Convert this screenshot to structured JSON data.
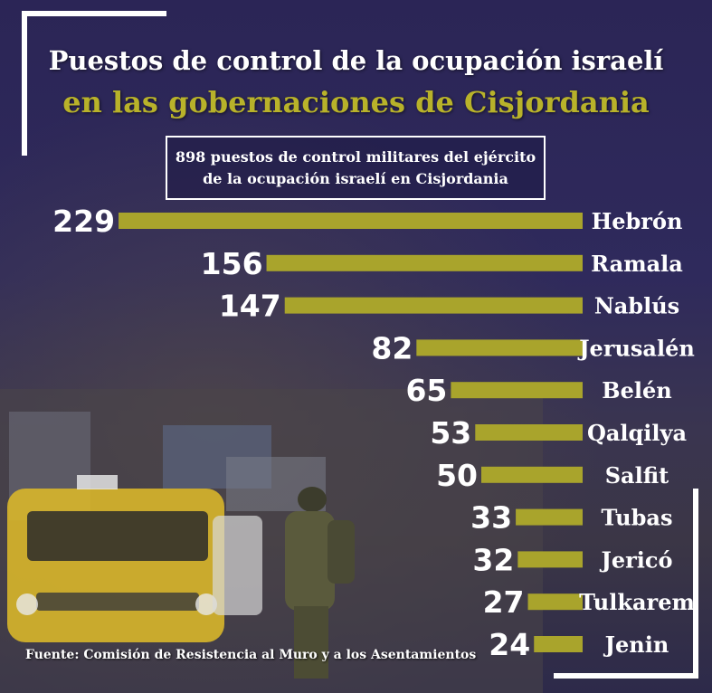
{
  "title_line1": "Puestos de control de la ocupación israelí",
  "title_line2": "en las gobernaciones de Cisjordania",
  "subtitle_line1": "898 puestos de control militares del ejército",
  "subtitle_line2": "de la ocupación israelí en Cisjordania",
  "source": "Fuente: Comisión de Resistencia al Muro y a los Asentamientos",
  "colors": {
    "title_accent": "#b8b22a",
    "bar": "#a9a42c",
    "text": "#ffffff"
  },
  "chart_data": {
    "type": "bar",
    "orientation": "horizontal",
    "categories": [
      "Hebrón",
      "Ramala",
      "Nablús",
      "Jerusalén",
      "Belén",
      "Qalqilya",
      "Salfit",
      "Tubas",
      "Jericó",
      "Tulkarem",
      "Jenin"
    ],
    "values": [
      229,
      156,
      147,
      82,
      65,
      53,
      50,
      33,
      32,
      27,
      24
    ],
    "title": "Puestos de control de la ocupación israelí en las gobernaciones de Cisjordania",
    "xlabel": "",
    "ylabel": "",
    "grid": false,
    "legend": "none"
  }
}
